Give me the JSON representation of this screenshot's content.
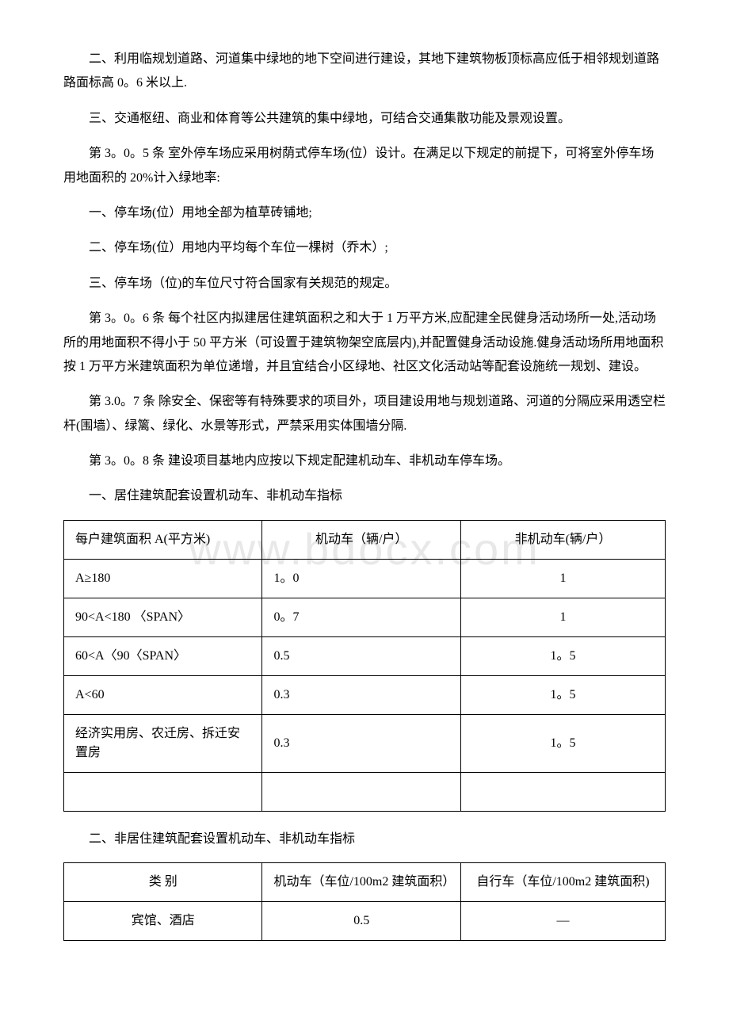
{
  "watermark": "www.bdocx.com",
  "paragraphs": {
    "p1": "二、利用临规划道路、河道集中绿地的地下空间进行建设，其地下建筑物板顶标高应低于相邻规划道路路面标高 0。6 米以上.",
    "p2": "三、交通枢纽、商业和体育等公共建筑的集中绿地，可结合交通集散功能及景观设置。",
    "p3": "第 3。0。5 条 室外停车场应采用树荫式停车场(位）设计。在满足以下规定的前提下，可将室外停车场用地面积的 20%计入绿地率:",
    "p4": "一、停车场(位）用地全部为植草砖铺地;",
    "p5": "二、停车场(位）用地内平均每个车位一棵树（乔木）;",
    "p6": "三、停车场（位)的车位尺寸符合国家有关规范的规定。",
    "p7": "第 3。0。6 条 每个社区内拟建居住建筑面积之和大于 1 万平方米,应配建全民健身活动场所一处,活动场所的用地面积不得小于 50 平方米（可设置于建筑物架空底层内),并配置健身活动设施.健身活动场所用地面积按 1 万平方米建筑面积为单位递增，并且宜结合小区绿地、社区文化活动站等配套设施统一规划、建设。",
    "p8": "第 3.0。7 条 除安全、保密等有特殊要求的项目外，项目建设用地与规划道路、河道的分隔应采用透空栏杆(围墙）、绿篱、绿化、水景等形式，严禁采用实体围墙分隔.",
    "p9": "第 3。0。8 条 建设项目基地内应按以下规定配建机动车、非机动车停车场。",
    "p10": "一、居住建筑配套设置机动车、非机动车指标",
    "p11": "二、非居住建筑配套设置机动车、非机动车指标"
  },
  "table1": {
    "headers": {
      "h1": "每户建筑面积 A(平方米)",
      "h2": "机动车（辆/户）",
      "h3": "非机动车(辆/户）"
    },
    "rows": [
      {
        "c1": "A≥180",
        "c2": "1。0",
        "c3": "1"
      },
      {
        "c1": "90<A<180 〈SPAN〉",
        "c2": "0。7",
        "c3": "1"
      },
      {
        "c1": "60<A〈90〈SPAN〉",
        "c2": "0.5",
        "c3": "1。5"
      },
      {
        "c1": "A<60",
        "c2": "0.3",
        "c3": "1。5"
      },
      {
        "c1": "经济实用房、农迁房、拆迁安置房",
        "c2": "0.3",
        "c3": "1。5"
      },
      {
        "c1": "",
        "c2": "",
        "c3": ""
      }
    ]
  },
  "table2": {
    "headers": {
      "h1": "类 别",
      "h2": "机动车（车位/100m2 建筑面积）",
      "h3": "自行车（车位/100m2 建筑面积)"
    },
    "rows": [
      {
        "c1": "宾馆、酒店",
        "c2": "0.5",
        "c3": "—"
      }
    ]
  }
}
